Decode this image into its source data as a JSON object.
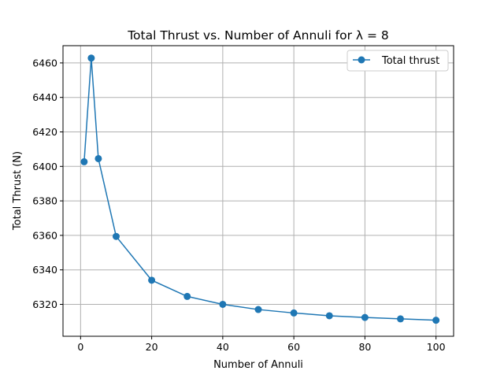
{
  "chart_data": {
    "type": "line",
    "title": "Total Thrust vs. Number of Annuli for λ = 8",
    "xlabel": "Number of Annuli",
    "ylabel": "Total Thrust (N)",
    "xlim": [
      -4.95,
      104.95
    ],
    "ylim": [
      6301.5,
      6470
    ],
    "xticks": [
      0,
      20,
      40,
      60,
      80,
      100
    ],
    "yticks": [
      6320,
      6340,
      6360,
      6380,
      6400,
      6420,
      6440,
      6460
    ],
    "grid": true,
    "legend_position": "top-right",
    "color": "#1f77b4",
    "series": [
      {
        "name": "Total thrust",
        "x": [
          1,
          3,
          5,
          10,
          20,
          30,
          40,
          50,
          60,
          70,
          80,
          90,
          100
        ],
        "y": [
          6402.7,
          6462.8,
          6404.5,
          6359.4,
          6334.0,
          6324.6,
          6320.0,
          6317.0,
          6315.0,
          6313.4,
          6312.4,
          6311.6,
          6310.8
        ]
      }
    ]
  }
}
